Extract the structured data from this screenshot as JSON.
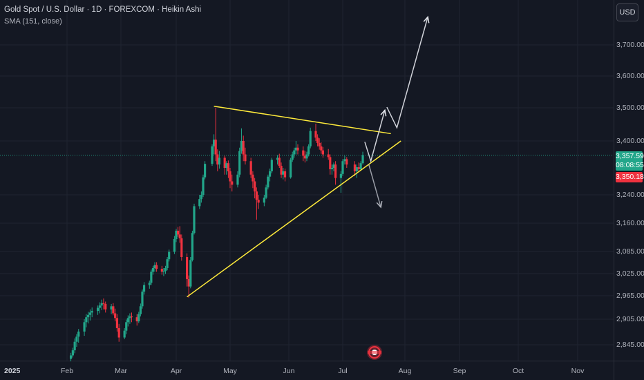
{
  "header": {
    "title": "Gold Spot / U.S. Dollar · 1D · FOREXCOM · Heikin Ashi",
    "indicator": "SMA (151, close)"
  },
  "currency_button": "USD",
  "price_axis": [
    "3,700.00",
    "3,600.00",
    "3,500.00",
    "3,400.00",
    "3,240.00",
    "3,160.00",
    "3,085.00",
    "3,025.00",
    "2,965.00",
    "2,905.00",
    "2,845.00"
  ],
  "time_axis": [
    "2025",
    "Feb",
    "Mar",
    "Apr",
    "May",
    "Jun",
    "Jul",
    "Aug",
    "Sep",
    "Oct",
    "Nov"
  ],
  "last_price": {
    "value": "3,357.59",
    "countdown": "08:08:55"
  },
  "sma_value": "3,350.18",
  "colors": {
    "background": "#141823",
    "up": "#22a68a",
    "down": "#f0323f",
    "trendline": "#ffeb3b",
    "arrow": "#b2b5be"
  },
  "chart_data": {
    "type": "candlestick",
    "title": "Gold Spot / U.S. Dollar · 1D · FOREXCOM · Heikin Ashi",
    "series_note": "Heikin Ashi daily candles, values in USD",
    "ohlc": [
      [
        "2025-02-03",
        2812,
        2826,
        2806,
        2820
      ],
      [
        "2025-02-04",
        2820,
        2838,
        2815,
        2832
      ],
      [
        "2025-02-05",
        2832,
        2860,
        2825,
        2852
      ],
      [
        "2025-02-06",
        2852,
        2870,
        2840,
        2864
      ],
      [
        "2025-02-07",
        2864,
        2882,
        2850,
        2876
      ],
      [
        "2025-02-10",
        2876,
        2905,
        2866,
        2898
      ],
      [
        "2025-02-11",
        2898,
        2918,
        2886,
        2910
      ],
      [
        "2025-02-12",
        2910,
        2924,
        2895,
        2916
      ],
      [
        "2025-02-13",
        2916,
        2930,
        2902,
        2922
      ],
      [
        "2025-02-14",
        2922,
        2935,
        2910,
        2926
      ],
      [
        "2025-02-17",
        2926,
        2940,
        2916,
        2934
      ],
      [
        "2025-02-18",
        2934,
        2948,
        2920,
        2940
      ],
      [
        "2025-02-19",
        2940,
        2955,
        2928,
        2946
      ],
      [
        "2025-02-20",
        2946,
        2958,
        2930,
        2944
      ],
      [
        "2025-02-21",
        2944,
        2950,
        2922,
        2930
      ],
      [
        "2025-02-24",
        2930,
        2944,
        2918,
        2938
      ],
      [
        "2025-02-25",
        2938,
        2946,
        2915,
        2920
      ],
      [
        "2025-02-26",
        2920,
        2932,
        2900,
        2908
      ],
      [
        "2025-02-27",
        2908,
        2918,
        2876,
        2884
      ],
      [
        "2025-02-28",
        2884,
        2894,
        2852,
        2862
      ],
      [
        "2025-03-03",
        2862,
        2884,
        2858,
        2878
      ],
      [
        "2025-03-04",
        2878,
        2904,
        2870,
        2898
      ],
      [
        "2025-03-05",
        2898,
        2915,
        2888,
        2908
      ],
      [
        "2025-03-06",
        2908,
        2920,
        2894,
        2912
      ],
      [
        "2025-03-07",
        2912,
        2922,
        2898,
        2910
      ],
      [
        "2025-03-10",
        2910,
        2918,
        2890,
        2900
      ],
      [
        "2025-03-11",
        2900,
        2924,
        2896,
        2918
      ],
      [
        "2025-03-12",
        2918,
        2945,
        2912,
        2938
      ],
      [
        "2025-03-13",
        2938,
        2982,
        2932,
        2976
      ],
      [
        "2025-03-14",
        2976,
        3002,
        2968,
        2994
      ],
      [
        "2025-03-17",
        2994,
        3006,
        2984,
        3000
      ],
      [
        "2025-03-18",
        3000,
        3036,
        2994,
        3030
      ],
      [
        "2025-03-19",
        3030,
        3046,
        3022,
        3040
      ],
      [
        "2025-03-20",
        3040,
        3056,
        3030,
        3048
      ],
      [
        "2025-03-21",
        3048,
        3056,
        3030,
        3038
      ],
      [
        "2025-03-24",
        3038,
        3046,
        3022,
        3030
      ],
      [
        "2025-03-25",
        3030,
        3040,
        3018,
        3032
      ],
      [
        "2025-03-26",
        3032,
        3046,
        3024,
        3040
      ],
      [
        "2025-03-27",
        3040,
        3070,
        3034,
        3064
      ],
      [
        "2025-03-28",
        3064,
        3090,
        3058,
        3084
      ],
      [
        "2025-03-31",
        3084,
        3126,
        3078,
        3118
      ],
      [
        "2025-04-01",
        3118,
        3145,
        3110,
        3140
      ],
      [
        "2025-04-02",
        3140,
        3150,
        3124,
        3130
      ],
      [
        "2025-04-03",
        3130,
        3152,
        3108,
        3120
      ],
      [
        "2025-04-04",
        3120,
        3130,
        3060,
        3070
      ],
      [
        "2025-04-07",
        3070,
        3080,
        2990,
        3010
      ],
      [
        "2025-04-08",
        3010,
        3020,
        2960,
        2990
      ],
      [
        "2025-04-09",
        2990,
        3070,
        2985,
        3062
      ],
      [
        "2025-04-10",
        3062,
        3140,
        3058,
        3134
      ],
      [
        "2025-04-11",
        3134,
        3215,
        3130,
        3208
      ],
      [
        "2025-04-14",
        3208,
        3240,
        3200,
        3228
      ],
      [
        "2025-04-15",
        3228,
        3250,
        3218,
        3240
      ],
      [
        "2025-04-16",
        3240,
        3300,
        3234,
        3292
      ],
      [
        "2025-04-17",
        3292,
        3340,
        3286,
        3332
      ],
      [
        "2025-04-21",
        3332,
        3390,
        3326,
        3384
      ],
      [
        "2025-04-22",
        3384,
        3420,
        3360,
        3404
      ],
      [
        "2025-04-23",
        3404,
        3500,
        3340,
        3360
      ],
      [
        "2025-04-24",
        3360,
        3375,
        3310,
        3330
      ],
      [
        "2025-04-25",
        3330,
        3370,
        3318,
        3350
      ],
      [
        "2025-04-28",
        3350,
        3356,
        3300,
        3320
      ],
      [
        "2025-04-29",
        3320,
        3340,
        3300,
        3334
      ],
      [
        "2025-04-30",
        3334,
        3342,
        3290,
        3310
      ],
      [
        "2025-05-01",
        3310,
        3320,
        3260,
        3280
      ],
      [
        "2025-05-02",
        3280,
        3300,
        3250,
        3270
      ],
      [
        "2025-05-05",
        3270,
        3310,
        3262,
        3300
      ],
      [
        "2025-05-06",
        3300,
        3380,
        3292,
        3370
      ],
      [
        "2025-05-07",
        3370,
        3438,
        3362,
        3400
      ],
      [
        "2025-05-08",
        3400,
        3416,
        3340,
        3360
      ],
      [
        "2025-05-09",
        3360,
        3380,
        3330,
        3340
      ],
      [
        "2025-05-12",
        3340,
        3350,
        3290,
        3300
      ],
      [
        "2025-05-13",
        3300,
        3310,
        3260,
        3280
      ],
      [
        "2025-05-14",
        3280,
        3290,
        3230,
        3250
      ],
      [
        "2025-05-15",
        3250,
        3262,
        3170,
        3226
      ],
      [
        "2025-05-16",
        3226,
        3240,
        3200,
        3218
      ],
      [
        "2025-05-19",
        3218,
        3240,
        3208,
        3232
      ],
      [
        "2025-05-20",
        3232,
        3270,
        3228,
        3262
      ],
      [
        "2025-05-21",
        3262,
        3300,
        3256,
        3294
      ],
      [
        "2025-05-22",
        3294,
        3318,
        3280,
        3310
      ],
      [
        "2025-05-23",
        3310,
        3350,
        3304,
        3344
      ],
      [
        "2025-05-26",
        3344,
        3358,
        3330,
        3350
      ],
      [
        "2025-05-27",
        3350,
        3362,
        3320,
        3326
      ],
      [
        "2025-05-28",
        3326,
        3336,
        3290,
        3300
      ],
      [
        "2025-05-29",
        3300,
        3320,
        3286,
        3310
      ],
      [
        "2025-05-30",
        3310,
        3318,
        3280,
        3292
      ],
      [
        "2025-06-02",
        3292,
        3350,
        3288,
        3344
      ],
      [
        "2025-06-03",
        3344,
        3368,
        3338,
        3360
      ],
      [
        "2025-06-04",
        3360,
        3380,
        3350,
        3372
      ],
      [
        "2025-06-05",
        3372,
        3400,
        3360,
        3380
      ],
      [
        "2025-06-06",
        3380,
        3390,
        3360,
        3372
      ],
      [
        "2025-06-09",
        3372,
        3384,
        3340,
        3356
      ],
      [
        "2025-06-10",
        3356,
        3370,
        3336,
        3348
      ],
      [
        "2025-06-11",
        3348,
        3368,
        3340,
        3360
      ],
      [
        "2025-06-12",
        3360,
        3390,
        3354,
        3384
      ],
      [
        "2025-06-13",
        3384,
        3440,
        3378,
        3430
      ],
      [
        "2025-06-16",
        3430,
        3452,
        3400,
        3410
      ],
      [
        "2025-06-17",
        3410,
        3420,
        3384,
        3394
      ],
      [
        "2025-06-18",
        3394,
        3408,
        3374,
        3384
      ],
      [
        "2025-06-19",
        3384,
        3396,
        3362,
        3372
      ],
      [
        "2025-06-20",
        3372,
        3382,
        3350,
        3360
      ],
      [
        "2025-06-23",
        3360,
        3376,
        3344,
        3352
      ],
      [
        "2025-06-24",
        3352,
        3360,
        3300,
        3316
      ],
      [
        "2025-06-25",
        3316,
        3330,
        3300,
        3320
      ],
      [
        "2025-06-26",
        3320,
        3336,
        3310,
        3330
      ],
      [
        "2025-06-27",
        3330,
        3340,
        3270,
        3290
      ],
      [
        "2025-06-30",
        3290,
        3310,
        3246,
        3302
      ],
      [
        "2025-07-01",
        3302,
        3346,
        3296,
        3340
      ],
      [
        "2025-07-02",
        3340,
        3356,
        3330,
        3346
      ],
      [
        "2025-07-03",
        3346,
        3352,
        3320,
        3330
      ],
      [
        "2025-07-07",
        3330,
        3340,
        3296,
        3310
      ],
      [
        "2025-07-08",
        3310,
        3330,
        3290,
        3322
      ],
      [
        "2025-07-09",
        3322,
        3336,
        3310,
        3316
      ],
      [
        "2025-07-10",
        3316,
        3340,
        3312,
        3334
      ],
      [
        "2025-07-11",
        3334,
        3368,
        3330,
        3358
      ]
    ],
    "annotations": [
      {
        "type": "trendline",
        "label": "descending resistance",
        "from": [
          "2025-04-22",
          3505
        ],
        "to": [
          "2025-07-25",
          3422
        ]
      },
      {
        "type": "trendline",
        "label": "ascending support",
        "from": [
          "2025-04-07",
          2962
        ],
        "to": [
          "2025-07-30",
          3400
        ]
      },
      {
        "type": "projection-up",
        "path": [
          [
            "2025-07-12",
            3397
          ],
          [
            "2025-07-15",
            3340
          ],
          [
            "2025-07-22",
            3493
          ]
        ]
      },
      {
        "type": "projection-up",
        "path": [
          [
            "2025-07-23",
            3502
          ],
          [
            "2025-07-28",
            3440
          ],
          [
            "2025-08-14",
            3790
          ]
        ]
      },
      {
        "type": "projection-down",
        "path": [
          [
            "2025-07-14",
            3330
          ],
          [
            "2025-07-20",
            3205
          ]
        ]
      }
    ],
    "last_price": 3357.59,
    "sma_151": 3350.18,
    "xlabel": "",
    "ylabel": "",
    "legend": "none",
    "grid": true
  }
}
